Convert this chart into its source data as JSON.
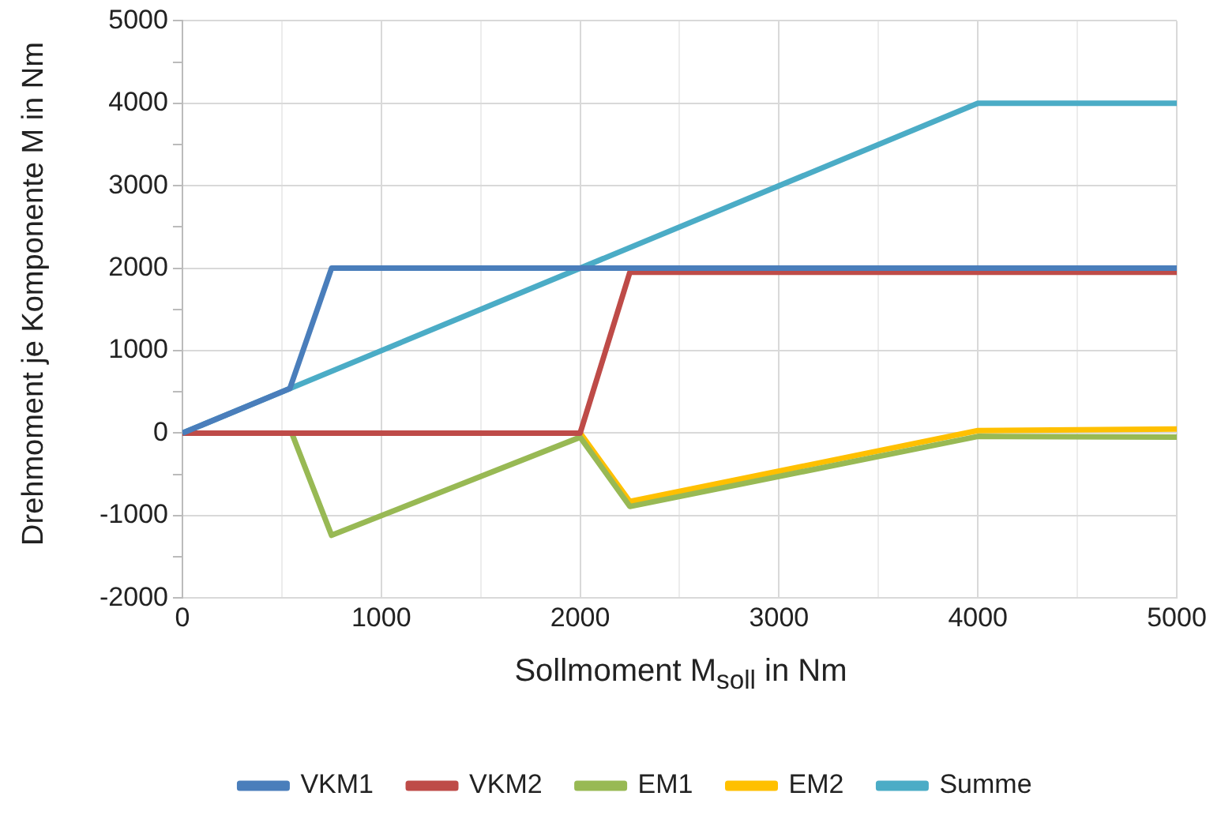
{
  "chart_data": {
    "type": "line",
    "xlabel": "Sollmoment M$_{soll}$ in Nm",
    "ylabel": "Drehmoment je Komponente M in Nm",
    "xlim": [
      0,
      5000
    ],
    "xticks": [
      0,
      {
        "value": 500,
        "label": null
      },
      1000,
      {
        "value": 1500,
        "label": null
      },
      2000,
      {
        "value": 2500,
        "label": null
      },
      3000,
      {
        "value": 3500,
        "label": null
      },
      4000,
      {
        "value": 4500,
        "label": null
      },
      5000
    ],
    "ylim": [
      -2000,
      5000
    ],
    "yticks": [
      -2000,
      {
        "value": -1500,
        "label": null
      },
      -1000,
      {
        "value": -500,
        "label": null
      },
      0,
      {
        "value": 500,
        "label": null
      },
      1000,
      {
        "value": 1500,
        "label": null
      },
      2000,
      {
        "value": 2500,
        "label": null
      },
      3000,
      {
        "value": 3500,
        "label": null
      },
      4000,
      {
        "value": 4500,
        "label": null
      },
      5000
    ],
    "grid": true,
    "legend": "bottom",
    "marker": "none",
    "line_style": "solid",
    "series": [
      {
        "name": "VKM1",
        "color": "#4a7ebb",
        "x": [
          0,
          540,
          750,
          5000
        ],
        "values": [
          0,
          540,
          2000,
          2000
        ]
      },
      {
        "name": "VKM2",
        "color": "#be4b48",
        "x": [
          0,
          2000,
          2250,
          5000
        ],
        "values": [
          0,
          0,
          1950,
          1950
        ]
      },
      {
        "name": "EM1",
        "color": "#98b954",
        "x": [
          0,
          550,
          750,
          2000,
          2250,
          4000,
          5000
        ],
        "values": [
          0,
          0,
          -1240,
          -50,
          -890,
          -40,
          -50
        ]
      },
      {
        "name": "EM2",
        "color": "#ffc000",
        "x": [
          0,
          2000,
          2250,
          4000,
          5000
        ],
        "values": [
          0,
          0,
          -830,
          30,
          50
        ]
      },
      {
        "name": "Summe",
        "color": "#4bacc6",
        "x": [
          0,
          4000,
          5000
        ],
        "values": [
          0,
          4000,
          4000
        ]
      }
    ]
  }
}
